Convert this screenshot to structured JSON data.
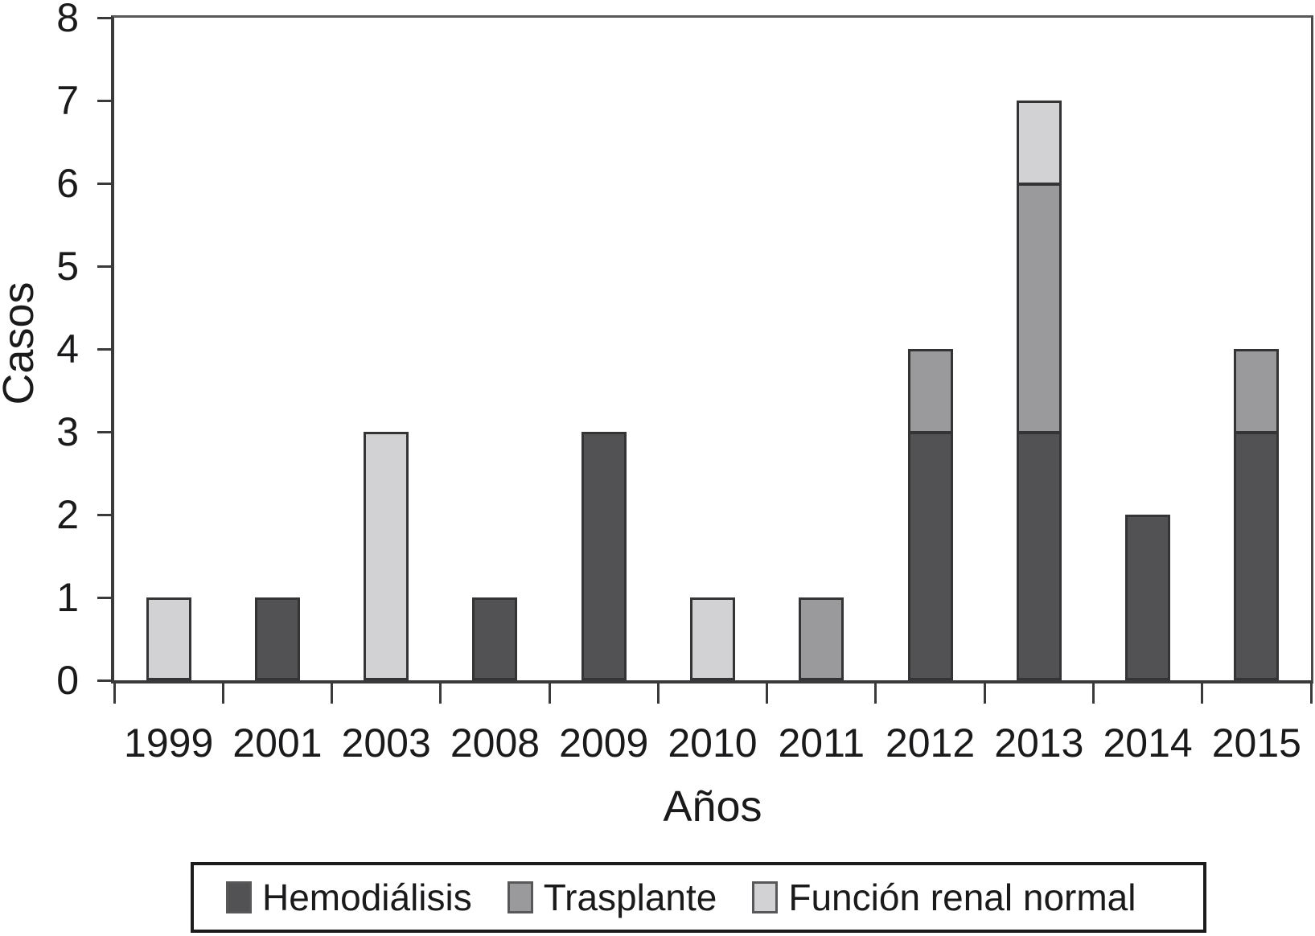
{
  "chart_data": {
    "type": "bar",
    "stacked": true,
    "title": "",
    "xlabel": "Años",
    "ylabel": "Casos",
    "categories": [
      "1999",
      "2001",
      "2003",
      "2008",
      "2009",
      "2010",
      "2011",
      "2012",
      "2013",
      "2014",
      "2015"
    ],
    "series": [
      {
        "name": "Hemodiálisis",
        "color": "#525254",
        "values": [
          0,
          1,
          0,
          1,
          3,
          0,
          0,
          3,
          3,
          2,
          3
        ]
      },
      {
        "name": "Trasplante",
        "color": "#9a9a9c",
        "values": [
          0,
          0,
          0,
          0,
          0,
          0,
          1,
          1,
          3,
          0,
          1
        ]
      },
      {
        "name": "Función renal normal",
        "color": "#d2d2d4",
        "values": [
          1,
          0,
          3,
          0,
          0,
          1,
          0,
          0,
          1,
          0,
          0
        ]
      }
    ],
    "totals_by_category": [
      1,
      1,
      3,
      1,
      3,
      1,
      1,
      4,
      7,
      2,
      4
    ],
    "ylim": [
      0,
      8
    ],
    "yticks": [
      0,
      1,
      2,
      3,
      4,
      5,
      6,
      7,
      8
    ],
    "grid": false,
    "legend_position": "bottom",
    "colors": {
      "bar_border": "#343436",
      "axis": "#3a3a3c",
      "frame": "#58585a",
      "text": "#1a1a1c",
      "legend_border": "#1c1c1e",
      "background": "#ffffff"
    }
  }
}
